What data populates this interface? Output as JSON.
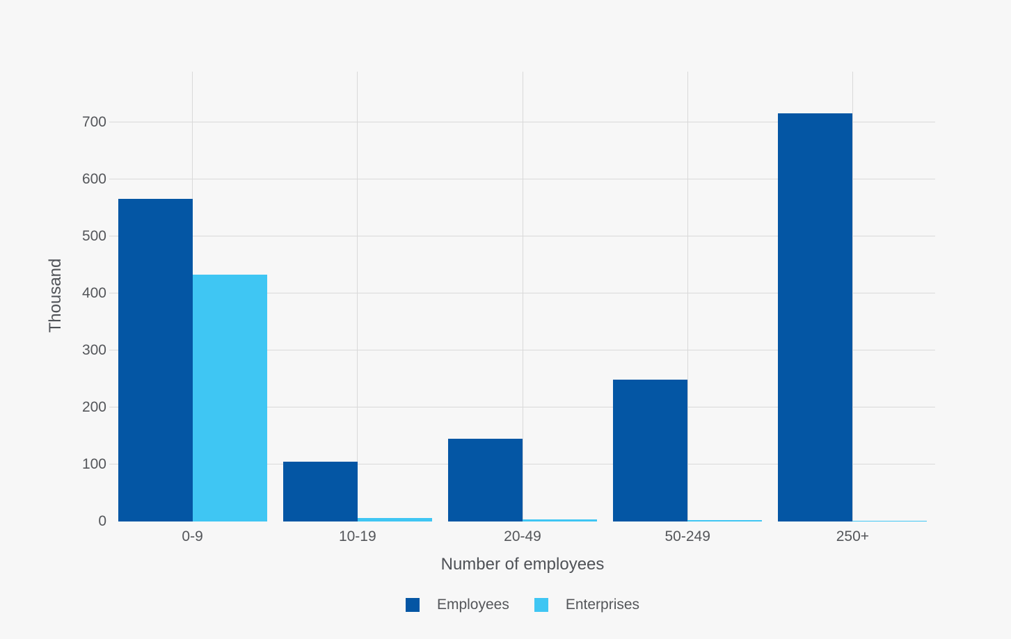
{
  "chart_data": {
    "type": "bar",
    "title": "",
    "categories": [
      "0-9",
      "10-19",
      "20-49",
      "50-249",
      "250+"
    ],
    "series": [
      {
        "name": "Employees",
        "color": "#0456a4",
        "values": [
          565,
          105,
          145,
          248,
          715
        ]
      },
      {
        "name": "Enterprises",
        "color": "#3fc6f3",
        "values": [
          432,
          6,
          4,
          2,
          1
        ]
      }
    ],
    "xlabel": "Number of employees",
    "ylabel": "Thousand",
    "yticks": [
      0,
      100,
      200,
      300,
      400,
      500,
      600,
      700
    ],
    "ylim": [
      0,
      792
    ],
    "grid": true,
    "legend_position": "bottom",
    "unit": "Thousand"
  },
  "colors": {
    "background": "#f7f7f7",
    "gridline": "#d9d9d9",
    "text": "#54565a"
  }
}
